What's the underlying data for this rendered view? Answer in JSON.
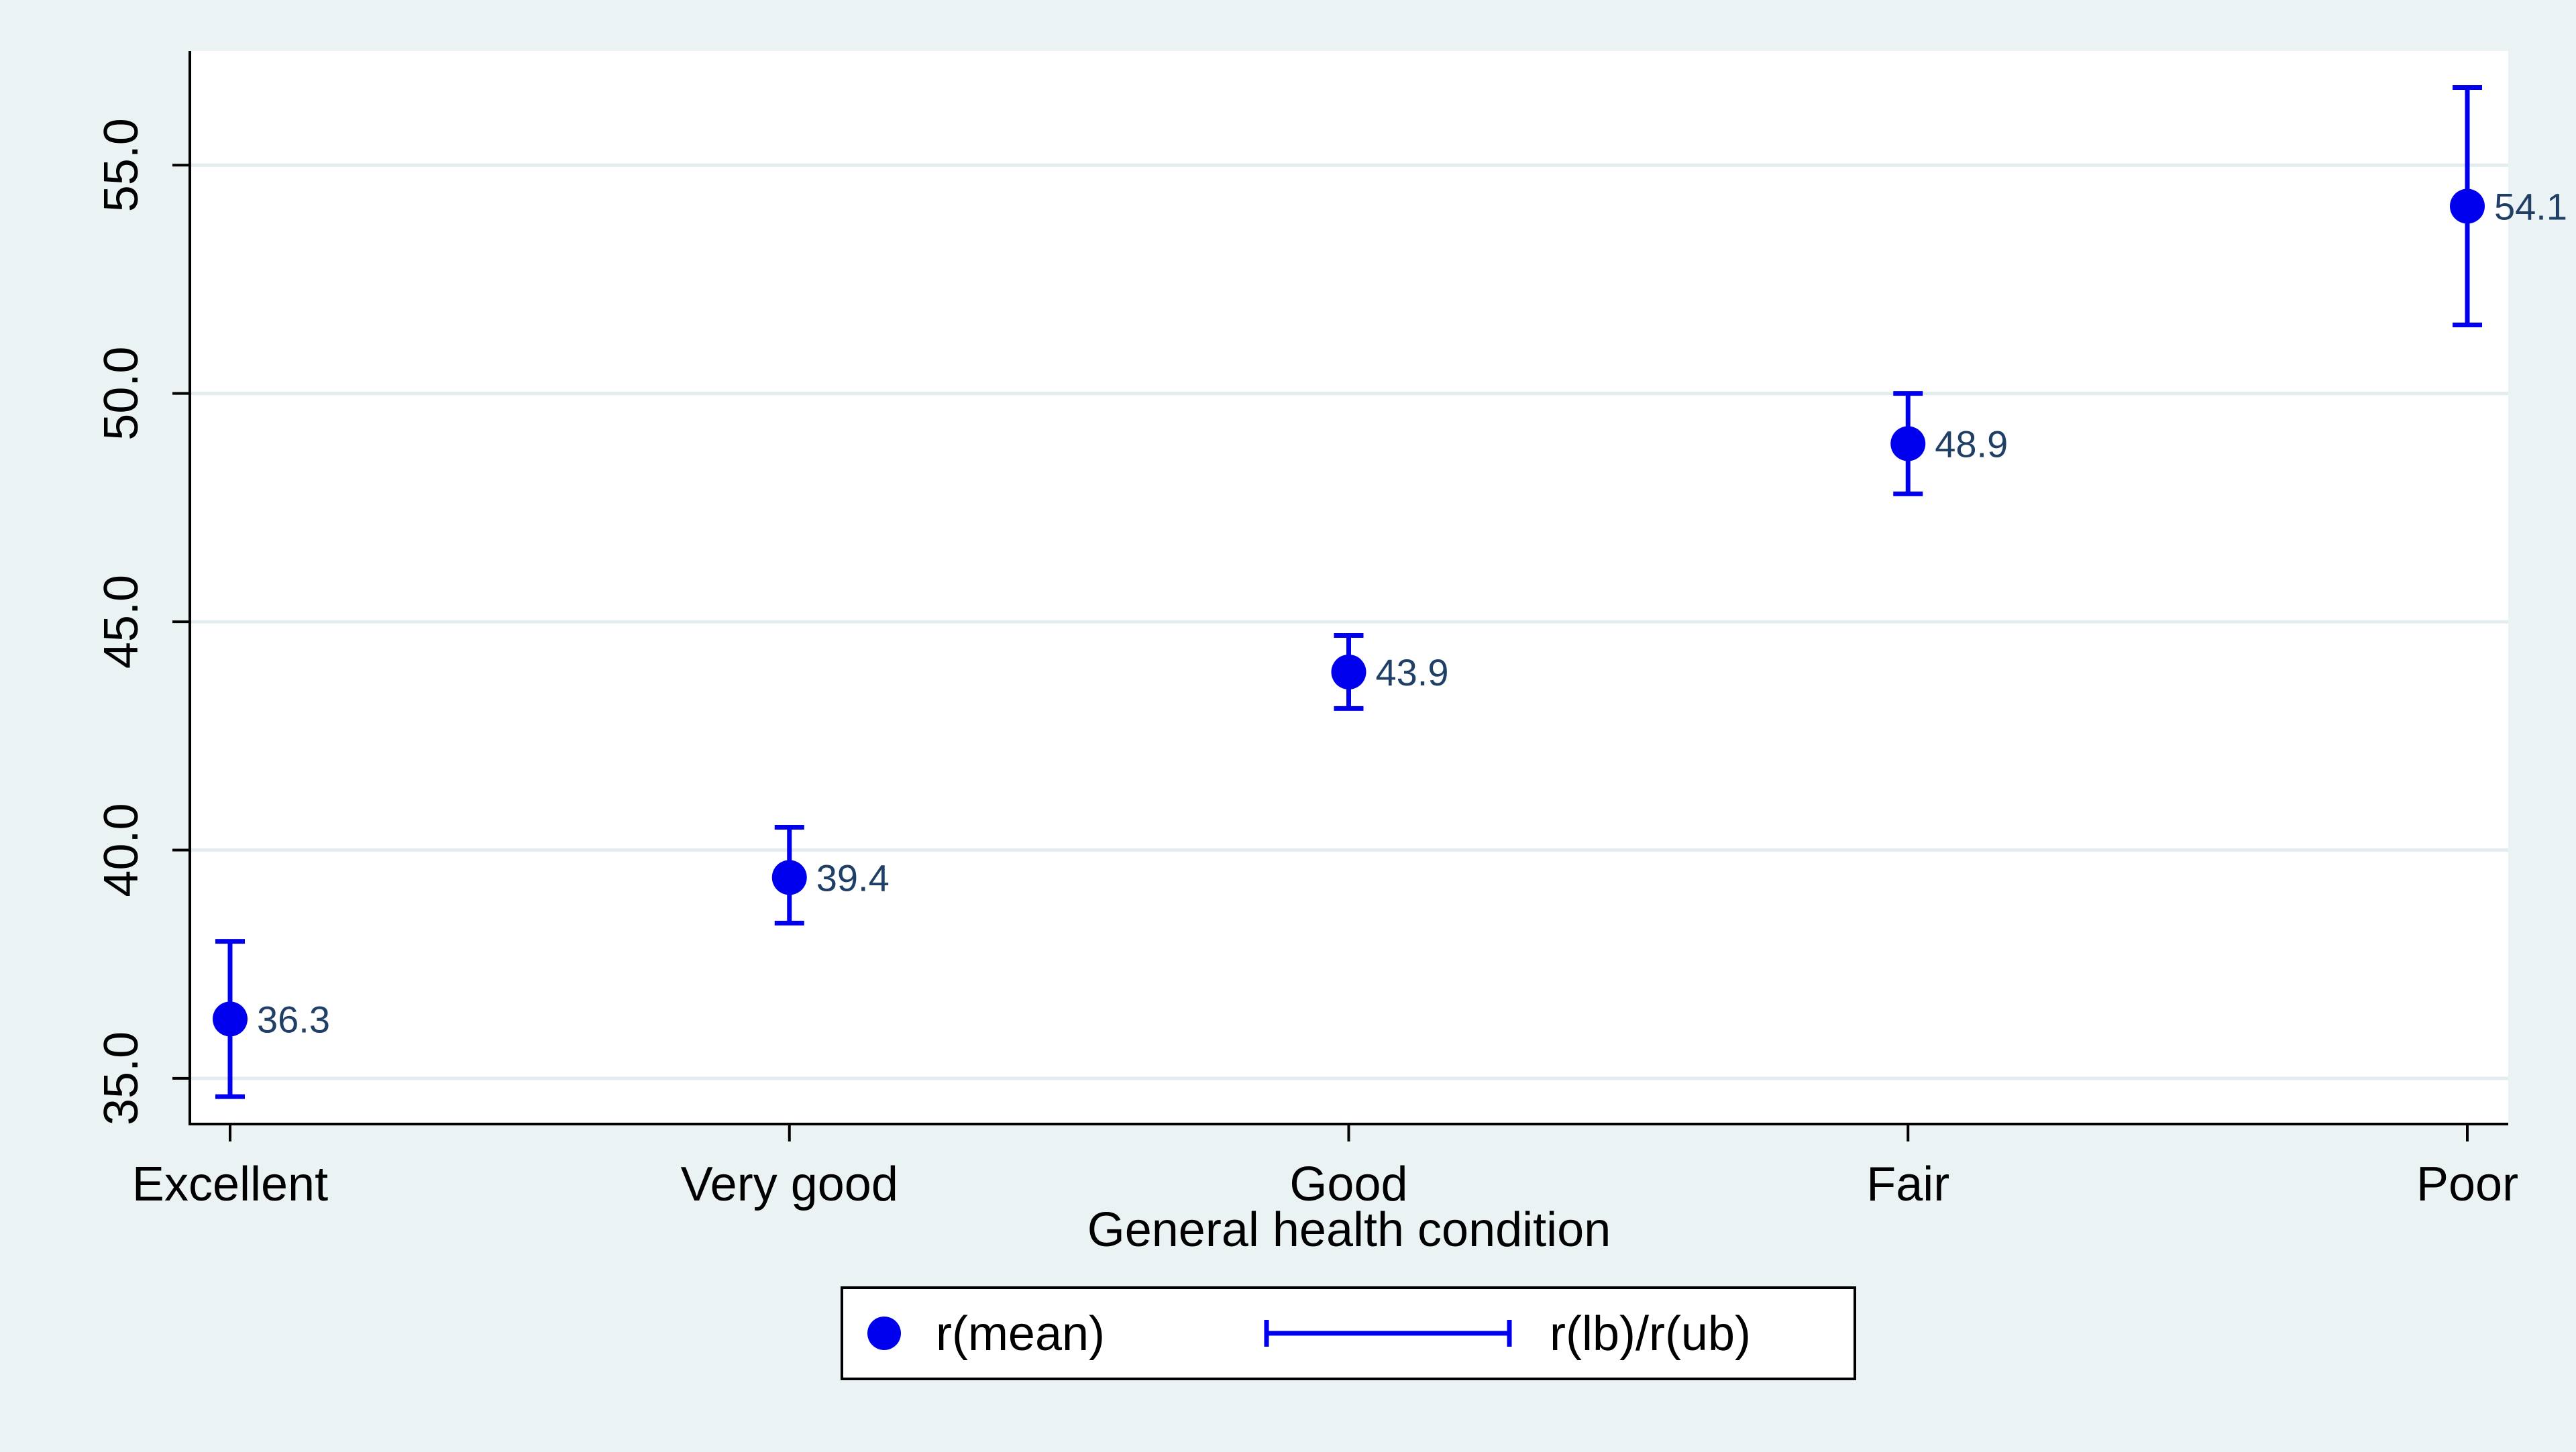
{
  "chart_data": {
    "type": "scatter",
    "title": "",
    "xlabel": "General health condition",
    "ylabel": "",
    "categories": [
      "Excellent",
      "Very good",
      "Good",
      "Fair",
      "Poor"
    ],
    "series": [
      {
        "name": "r(mean)",
        "kind": "point",
        "values": [
          36.3,
          39.4,
          43.9,
          48.9,
          54.1
        ],
        "data_labels": [
          "36.3",
          "39.4",
          "43.9",
          "48.9",
          "54.1"
        ]
      },
      {
        "name": "r(lb)/r(ub)",
        "kind": "errorbar",
        "lower": [
          34.6,
          38.4,
          43.1,
          47.8,
          51.5
        ],
        "upper": [
          38.0,
          40.5,
          44.7,
          50.0,
          56.7
        ]
      }
    ],
    "ylim": [
      34.0,
      57.5
    ],
    "yticks": [
      35.0,
      40.0,
      45.0,
      50.0,
      55.0
    ],
    "ytick_labels": [
      "35.0",
      "40.0",
      "45.0",
      "50.0",
      "55.0"
    ],
    "grid": true,
    "legend_position": "bottom",
    "colors": {
      "marker": "#0000ee",
      "data_label": "#1f3f66",
      "axis": "#000000",
      "grid": "#e3ecee",
      "plot_background": "#ffffff",
      "outer_background": "#eaf2f3"
    }
  }
}
